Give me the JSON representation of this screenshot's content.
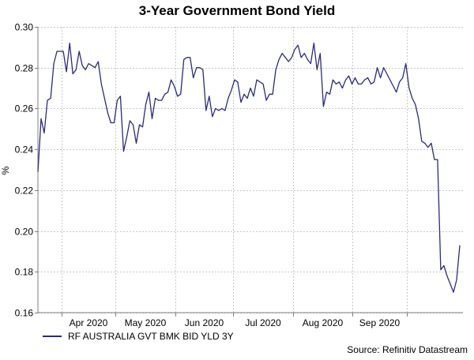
{
  "chart_data": {
    "type": "line",
    "title": "3-Year Government Bond Yield",
    "ylabel": "%",
    "xlabel": "",
    "ylim": [
      0.16,
      0.3
    ],
    "yticks": [
      0.16,
      0.18,
      0.2,
      0.22,
      0.24,
      0.26,
      0.28,
      0.3
    ],
    "xtick_labels": [
      "Apr 2020",
      "May 2020",
      "Jun 2020",
      "Jul 2020",
      "Aug 2020",
      "Sep 2020"
    ],
    "grid": true,
    "legend_position": "bottom-left",
    "source": "Source: Refinitiv Datastream",
    "series": [
      {
        "name": "RF AUSTRALIA GVT BMK BID YLD 3Y",
        "color": "#2b2b7f",
        "values": [
          0.229,
          0.255,
          0.248,
          0.264,
          0.265,
          0.282,
          0.288,
          0.288,
          0.288,
          0.278,
          0.292,
          0.277,
          0.279,
          0.288,
          0.281,
          0.279,
          0.282,
          0.281,
          0.28,
          0.283,
          0.272,
          0.265,
          0.258,
          0.253,
          0.253,
          0.264,
          0.266,
          0.239,
          0.246,
          0.254,
          0.252,
          0.243,
          0.252,
          0.251,
          0.262,
          0.268,
          0.255,
          0.265,
          0.264,
          0.264,
          0.267,
          0.268,
          0.274,
          0.271,
          0.266,
          0.267,
          0.284,
          0.285,
          0.285,
          0.275,
          0.28,
          0.28,
          0.279,
          0.259,
          0.266,
          0.256,
          0.26,
          0.259,
          0.26,
          0.259,
          0.265,
          0.269,
          0.274,
          0.273,
          0.263,
          0.267,
          0.265,
          0.27,
          0.266,
          0.274,
          0.273,
          0.272,
          0.264,
          0.267,
          0.267,
          0.279,
          0.284,
          0.287,
          0.285,
          0.283,
          0.285,
          0.289,
          0.291,
          0.285,
          0.287,
          0.284,
          0.282,
          0.292,
          0.279,
          0.287,
          0.261,
          0.268,
          0.267,
          0.274,
          0.272,
          0.273,
          0.27,
          0.274,
          0.276,
          0.272,
          0.275,
          0.272,
          0.272,
          0.274,
          0.275,
          0.272,
          0.273,
          0.28,
          0.275,
          0.28,
          0.277,
          0.274,
          0.271,
          0.268,
          0.273,
          0.275,
          0.282,
          0.27,
          0.265,
          0.262,
          0.255,
          0.244,
          0.243,
          0.241,
          0.243,
          0.235,
          0.235,
          0.181,
          0.183,
          0.178,
          0.174,
          0.17,
          0.176,
          0.193
        ]
      }
    ]
  }
}
